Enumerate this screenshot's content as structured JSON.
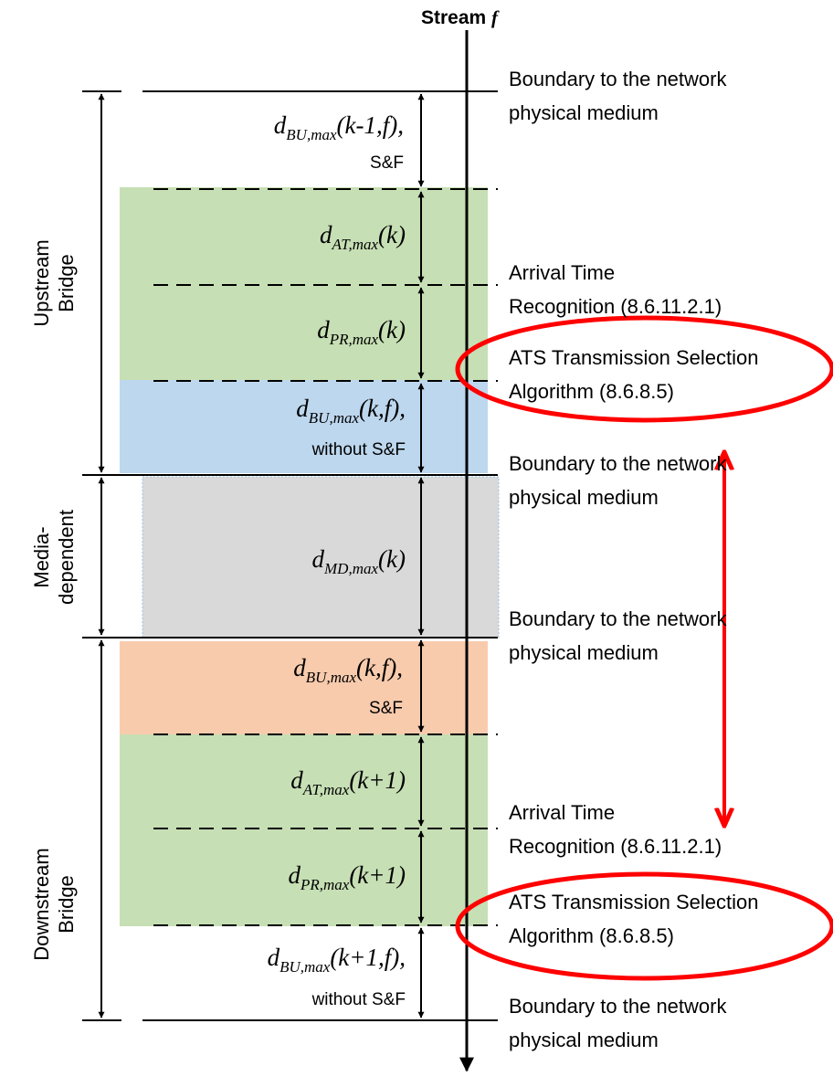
{
  "title": {
    "prefix": "Stream ",
    "symbol": "f"
  },
  "colors": {
    "green": "#c6dfb4",
    "blue": "#bdd7ee",
    "gray": "#d9d9d9",
    "orange": "#f8cbad",
    "highlight": "#ff0000"
  },
  "delays": {
    "bu_upstream_sf": {
      "d": "d",
      "sub": "BU,max",
      "arg": "(k-1,f),",
      "note": "S&F"
    },
    "at_upstream": {
      "d": "d",
      "sub": "AT,max",
      "arg": "(k)"
    },
    "pr_upstream": {
      "d": "d",
      "sub": "PR,max",
      "arg": "(k)"
    },
    "bu_upstream_nosf": {
      "d": "d",
      "sub": "BU,max",
      "arg": "(k,f),",
      "note": "without S&F"
    },
    "md": {
      "d": "d",
      "sub": "MD,max",
      "arg": "(k)"
    },
    "bu_downstream_sf": {
      "d": "d",
      "sub": "BU,max",
      "arg": "(k,f),",
      "note": "S&F"
    },
    "at_downstream": {
      "d": "d",
      "sub": "AT,max",
      "arg": "(k+1)"
    },
    "pr_downstream": {
      "d": "d",
      "sub": "PR,max",
      "arg": "(k+1)"
    },
    "bu_downstream_nosf": {
      "d": "d",
      "sub": "BU,max",
      "arg": "(k+1,f),",
      "note": "without S&F"
    }
  },
  "points": {
    "boundary_1": [
      "Boundary to the network",
      "physical medium"
    ],
    "atr_upstream": [
      "Arrival Time",
      "Recognition (8.6.11.2.1)"
    ],
    "ats_upstream": [
      "ATS Transmission Selection",
      "Algorithm (8.6.8.5)"
    ],
    "boundary_2": [
      "Boundary to the network",
      "physical medium"
    ],
    "boundary_3": [
      "Boundary to the network",
      "physical medium"
    ],
    "atr_downstream": [
      "Arrival Time",
      "Recognition (8.6.11.2.1)"
    ],
    "ats_downstream": [
      "ATS Transmission Selection",
      "Algorithm (8.6.8.5)"
    ],
    "boundary_4": [
      "Boundary to the network",
      "physical medium"
    ]
  },
  "sections": {
    "upstream": [
      "Upstream",
      "Bridge"
    ],
    "media": [
      "Media-",
      "dependent"
    ],
    "downstream": [
      "Downstream",
      "Bridge"
    ]
  }
}
